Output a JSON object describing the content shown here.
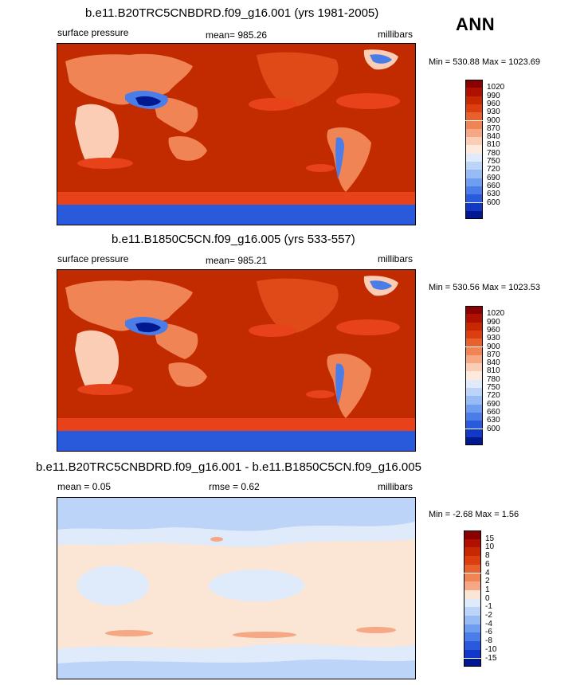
{
  "season": "ANN",
  "panels": [
    {
      "title": "b.e11.B20TRC5CNBDRD.f09_g16.001 (yrs 1981-2005)",
      "left": "surface pressure",
      "mid": "mean= 985.26",
      "right": "millibars",
      "minmax": "Min = 530.88 Max = 1023.69"
    },
    {
      "title": "b.e11.B1850C5CN.f09_g16.005 (yrs 533-557)",
      "left": "surface pressure",
      "mid": "mean= 985.21",
      "right": "millibars",
      "minmax": "Min = 530.56 Max = 1023.53"
    },
    {
      "title": "b.e11.B20TRC5CNBDRD.f09_g16.001 - b.e11.B1850C5CN.f09_g16.005",
      "left": "mean =   0.05",
      "mid": "rmse =   0.62",
      "right": "millibars",
      "minmax": "Min =  -2.68 Max =   1.56"
    }
  ],
  "colorbars": {
    "pressure": {
      "labels": [
        "1020",
        "990",
        "960",
        "930",
        "900",
        "870",
        "840",
        "810",
        "780",
        "750",
        "720",
        "690",
        "660",
        "630",
        "600"
      ],
      "colors": [
        "#8b0000",
        "#b01000",
        "#c82800",
        "#dc3e10",
        "#e8602c",
        "#f08454",
        "#f6a884",
        "#fbcdb4",
        "#fdeadc",
        "#dfeafb",
        "#bcd4f8",
        "#97bbf4",
        "#6f9df0",
        "#4a7de8",
        "#2a5adc",
        "#1238c8",
        "#001890"
      ]
    },
    "diff": {
      "labels": [
        "15",
        "10",
        "8",
        "6",
        "4",
        "2",
        "1",
        "0",
        "-1",
        "-2",
        "-4",
        "-6",
        "-8",
        "-10",
        "-15"
      ],
      "colors": [
        "#8b0000",
        "#b01000",
        "#c82800",
        "#dc3e10",
        "#e8602c",
        "#f08454",
        "#f6a884",
        "#fbe6d6",
        "#dfeafb",
        "#bcd4f8",
        "#97bbf4",
        "#6f9df0",
        "#4a7de8",
        "#2a5adc",
        "#1238c8",
        "#001890"
      ]
    }
  },
  "map_colors": {
    "ocean": "#c22a00",
    "land_high": "#e04a18",
    "land_mid": "#f08454",
    "land_low": "#fbcdb4",
    "plateau": "#4a7de8",
    "plateau_core": "#001890",
    "southern": "#e8421a",
    "antarctic": "#2a5adc",
    "diff_base": "#fbe6d6",
    "diff_blue": "#bcd4f8",
    "diff_pale_blue": "#dfeafb",
    "diff_pink": "#f6a884"
  }
}
